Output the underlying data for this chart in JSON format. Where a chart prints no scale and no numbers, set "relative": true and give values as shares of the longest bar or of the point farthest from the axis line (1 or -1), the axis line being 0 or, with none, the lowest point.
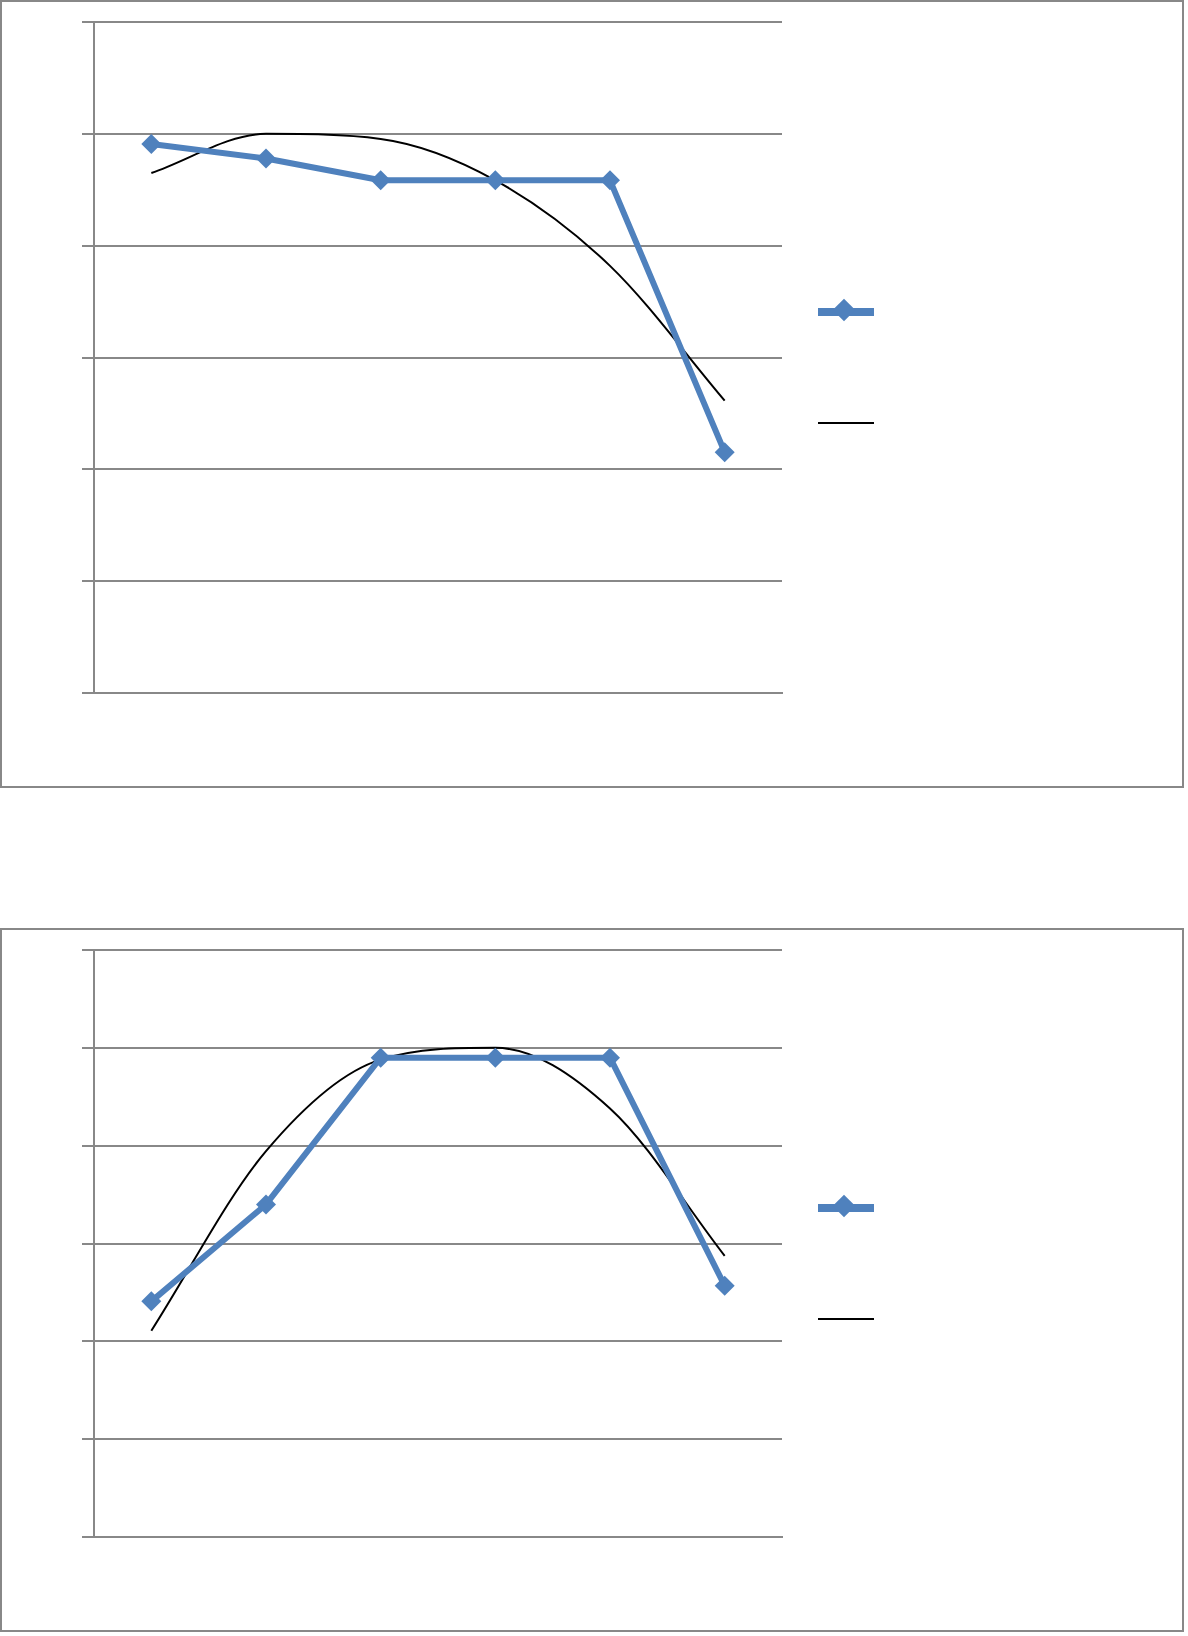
{
  "chart_data": [
    {
      "type": "line",
      "relative": true,
      "categories": [
        null,
        null,
        null,
        null,
        null,
        null
      ],
      "grid": "y",
      "series": [
        {
          "color": "#4f81bd",
          "marker": "diamond",
          "values": [
            0.982,
            0.956,
            0.917,
            0.917,
            0.917,
            0.431
          ]
        },
        {
          "color": "#000000",
          "marker": "none",
          "values": [
            0.93,
            1,
            0.991,
            0.917,
            0.764,
            0.523
          ]
        }
      ]
    },
    {
      "type": "line",
      "relative": true,
      "categories": [
        null,
        null,
        null,
        null,
        null,
        null
      ],
      "grid": "y",
      "series": [
        {
          "color": "#4f81bd",
          "marker": "diamond",
          "values": [
            0.482,
            0.68,
            0.98,
            0.98,
            0.98,
            0.514
          ]
        },
        {
          "color": "#000000",
          "marker": "none",
          "values": [
            0.422,
            0.789,
            0.976,
            1,
            0.876,
            0.575
          ]
        }
      ]
    }
  ]
}
